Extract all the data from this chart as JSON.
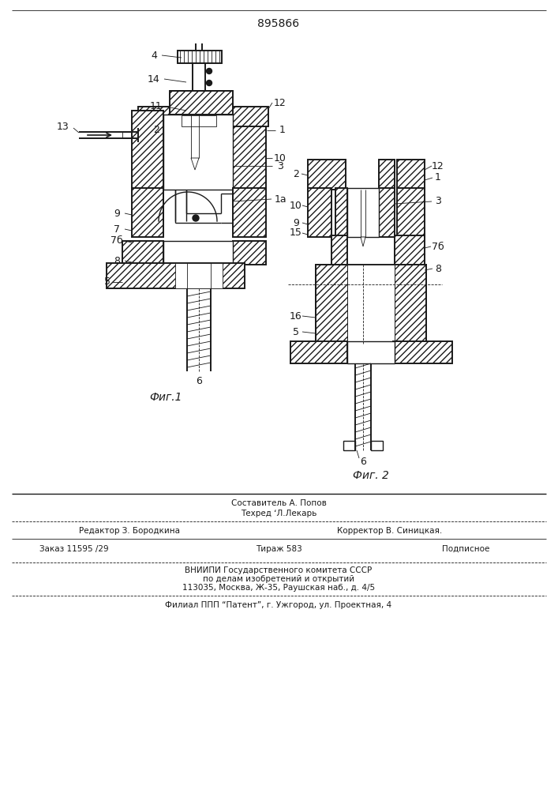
{
  "patent_number": "895866",
  "fig1_label": "Фиг.1",
  "fig2_label": "Фиг. 2",
  "editor_line": "Редактор З. Бородкина",
  "composer_line": "Составитель А. Попов",
  "techred_line": "Техред ʻЛ.Лекарь",
  "corrector_line": "Корректор В. Синицкая.",
  "order_line": "Заказ 11595 /29",
  "circulation_line": "Тираж 583",
  "subscription_line": "Подписное",
  "vnipi_line1": "ВНИИПИ Государственного комитета СССР",
  "vnipi_line2": "по делам изобретений и открытий",
  "vnipi_line3": "113035, Москва, Ж-35, Раушская наб., д. 4/5",
  "filial_line": "Филиал ППП “Патент”, г. Ужгород, ул. Проектная, 4",
  "bg_color": "#ffffff",
  "line_color": "#1a1a1a"
}
